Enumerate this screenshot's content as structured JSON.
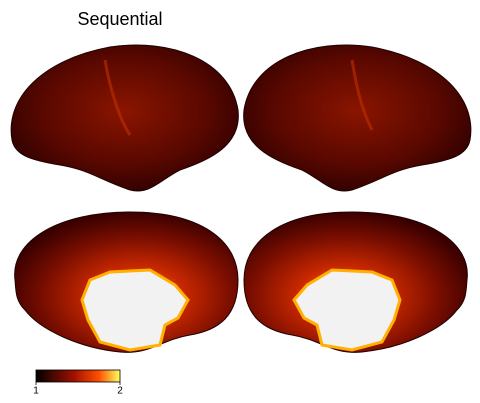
{
  "title": "Sequential",
  "colorbar": {
    "lim": [
      1,
      2
    ],
    "ticks": [
      1,
      2
    ]
  }
}
